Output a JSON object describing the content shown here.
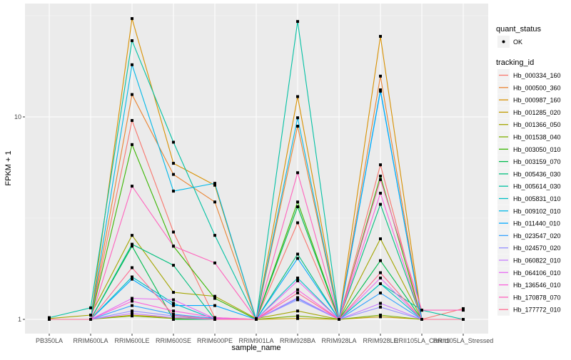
{
  "chart_data": {
    "type": "line",
    "title": "",
    "xlabel": "sample_name",
    "ylabel": "FPKM + 1",
    "y_scale": "log10",
    "ylim": [
      0.97,
      36
    ],
    "y_ticks": [
      1,
      10
    ],
    "y_tick_labels": [
      "1",
      "10"
    ],
    "grid": true,
    "legend_position": "right",
    "categories": [
      "PB350LA",
      "RRIM600LA",
      "RRIM600LE",
      "RRIM600SE",
      "RRIM600PE",
      "RRIM901LA",
      "RRIM928BA",
      "RRIM928LA",
      "RRIM928LE",
      "RRII105LA_Control",
      "RRII105LA_Stressed"
    ],
    "shape_legend": {
      "title": "quant_status",
      "entries": [
        "OK"
      ]
    },
    "color_legend_title": "tracking_id",
    "series": [
      {
        "name": "Hb_000334_160",
        "color": "#F8766D",
        "values": [
          1.0,
          1.0,
          9.6,
          2.7,
          1.02,
          1.0,
          3.0,
          1.0,
          5.8,
          1.0,
          1.13
        ]
      },
      {
        "name": "Hb_000500_360",
        "color": "#EA8331",
        "values": [
          1.0,
          1.0,
          12.9,
          5.2,
          3.8,
          1.0,
          9.0,
          1.0,
          15.9,
          1.0,
          1.0
        ]
      },
      {
        "name": "Hb_000987_160",
        "color": "#D89000",
        "values": [
          1.0,
          1.0,
          30.6,
          5.9,
          4.6,
          1.0,
          12.6,
          1.0,
          25.0,
          1.0,
          1.0
        ]
      },
      {
        "name": "Hb_001285_020",
        "color": "#C09B00",
        "values": [
          1.0,
          1.0,
          1.05,
          1.02,
          1.01,
          1.0,
          1.01,
          1.0,
          1.03,
          1.0,
          1.0
        ]
      },
      {
        "name": "Hb_001366_050",
        "color": "#A3A500",
        "values": [
          1.01,
          1.05,
          2.6,
          1.36,
          1.3,
          1.01,
          1.1,
          1.0,
          2.5,
          1.0,
          1.0
        ]
      },
      {
        "name": "Hb_001538_040",
        "color": "#7CAE00",
        "values": [
          1.0,
          1.0,
          1.04,
          1.01,
          1.0,
          1.0,
          1.04,
          1.0,
          1.05,
          1.0,
          1.0
        ]
      },
      {
        "name": "Hb_003050_010",
        "color": "#39B600",
        "values": [
          1.0,
          1.0,
          7.3,
          2.3,
          1.27,
          1.0,
          3.8,
          1.0,
          5.1,
          1.0,
          1.0
        ]
      },
      {
        "name": "Hb_003159_070",
        "color": "#00BB4E",
        "values": [
          1.0,
          1.0,
          2.3,
          1.0,
          1.0,
          1.0,
          3.6,
          1.0,
          1.95,
          1.0,
          1.0
        ]
      },
      {
        "name": "Hb_005436_030",
        "color": "#00BF7D",
        "values": [
          1.0,
          1.0,
          2.35,
          1.85,
          1.0,
          1.0,
          2.1,
          1.0,
          3.7,
          1.0,
          1.0
        ]
      },
      {
        "name": "Hb_005614_030",
        "color": "#00C1A3",
        "values": [
          1.02,
          1.14,
          23.8,
          7.5,
          2.6,
          1.0,
          29.6,
          1.0,
          1.5,
          1.11,
          1.0
        ]
      },
      {
        "name": "Hb_005831_010",
        "color": "#00BFC4",
        "values": [
          1.0,
          1.0,
          1.62,
          1.2,
          1.0,
          1.0,
          1.6,
          1.0,
          1.5,
          1.0,
          1.0
        ]
      },
      {
        "name": "Hb_009102_010",
        "color": "#00B8E7",
        "values": [
          1.0,
          1.0,
          18.1,
          4.3,
          4.7,
          1.0,
          9.9,
          1.0,
          13.6,
          1.0,
          1.0
        ]
      },
      {
        "name": "Hb_011440_010",
        "color": "#00A9FF",
        "values": [
          1.0,
          1.0,
          1.58,
          1.17,
          1.17,
          1.0,
          2.0,
          1.0,
          13.4,
          1.0,
          1.0
        ]
      },
      {
        "name": "Hb_023547_020",
        "color": "#35A2FF",
        "values": [
          1.0,
          1.0,
          1.17,
          1.06,
          1.01,
          1.0,
          1.27,
          1.0,
          1.35,
          1.0,
          1.0
        ]
      },
      {
        "name": "Hb_024570_020",
        "color": "#9590FF",
        "values": [
          1.0,
          1.0,
          1.1,
          1.04,
          1.0,
          1.0,
          1.25,
          1.0,
          1.15,
          1.0,
          1.0
        ]
      },
      {
        "name": "Hb_060822_010",
        "color": "#C77CFF",
        "values": [
          1.0,
          1.0,
          1.07,
          1.02,
          1.0,
          1.0,
          1.28,
          1.0,
          1.2,
          1.0,
          1.0
        ]
      },
      {
        "name": "Hb_064106_010",
        "color": "#E76BF3",
        "values": [
          1.0,
          1.0,
          1.27,
          1.25,
          1.01,
          1.0,
          1.55,
          1.0,
          1.6,
          1.0,
          1.0
        ]
      },
      {
        "name": "Hb_136546_010",
        "color": "#FA62DB",
        "values": [
          1.0,
          1.0,
          1.23,
          1.1,
          1.02,
          1.0,
          1.4,
          1.0,
          4.2,
          1.0,
          1.0
        ]
      },
      {
        "name": "Hb_170878_070",
        "color": "#FF62BC",
        "values": [
          1.0,
          1.0,
          4.55,
          2.3,
          1.9,
          1.0,
          5.3,
          1.0,
          4.9,
          1.11,
          1.11
        ]
      },
      {
        "name": "Hb_177772_010",
        "color": "#FF6C91",
        "values": [
          1.0,
          1.0,
          1.8,
          1.05,
          1.0,
          1.0,
          1.35,
          1.0,
          1.7,
          1.0,
          1.0
        ]
      }
    ]
  }
}
